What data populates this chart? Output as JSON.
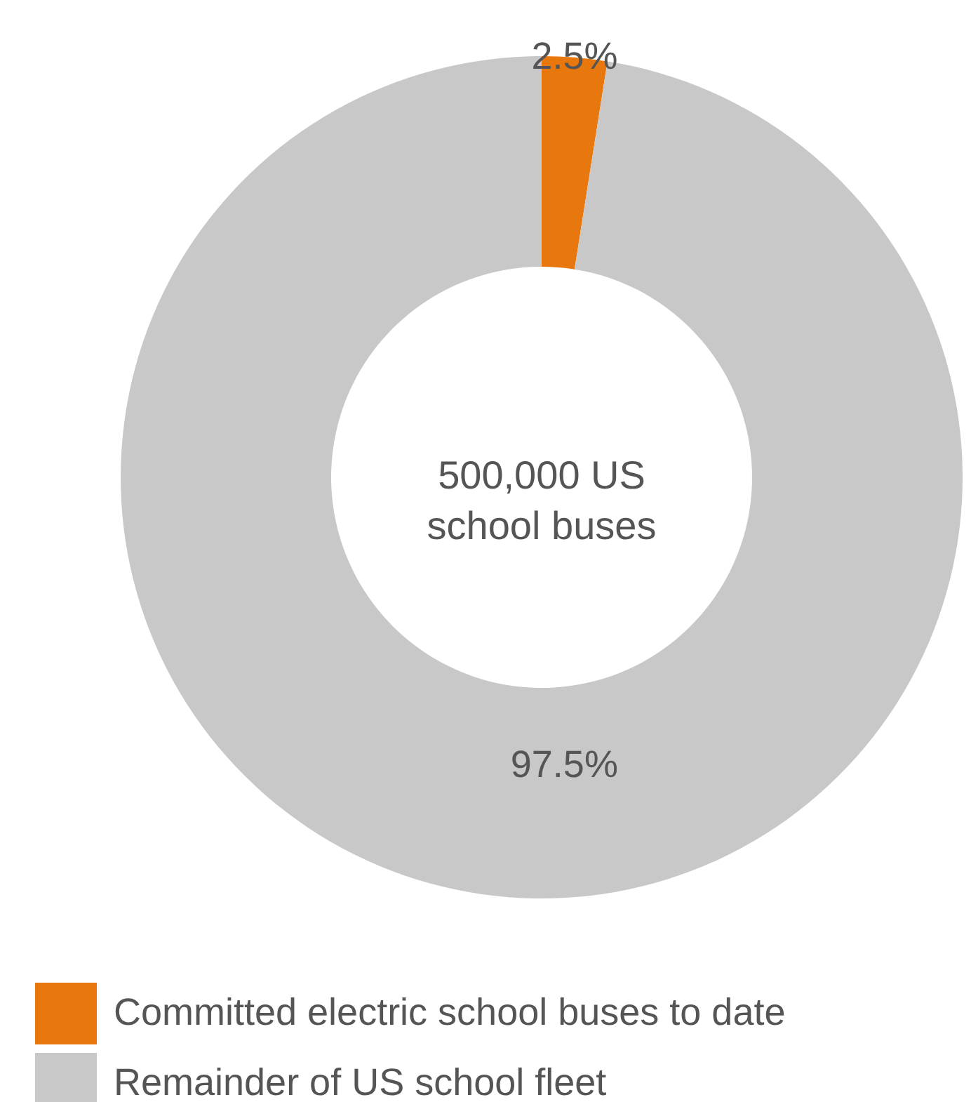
{
  "chart_data": {
    "type": "donut",
    "categories": [
      "Committed electric school buses to date",
      "Remainder of US school fleet"
    ],
    "values": [
      2.5,
      97.5
    ],
    "colors": [
      "#e8780e",
      "#c8c8c8"
    ],
    "value_labels": [
      "2.5%",
      "97.5%"
    ],
    "annotations": [
      "500,000 US\nschool buses"
    ],
    "legend": "bottom left"
  }
}
